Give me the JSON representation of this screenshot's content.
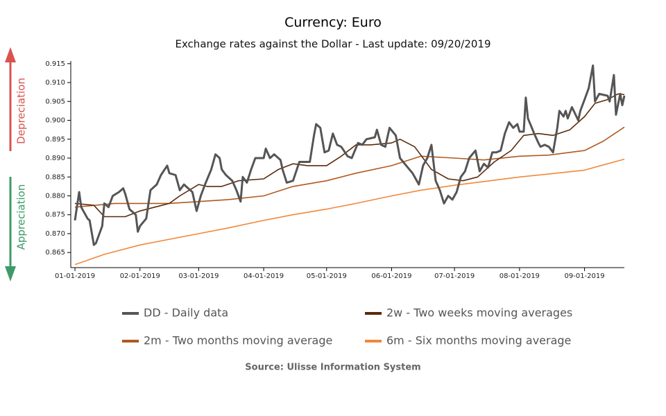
{
  "chart_data": {
    "type": "line",
    "title": "Currency: Euro",
    "subtitle": "Exchange rates against the Dollar - Last update: 09/20/2019",
    "source": "Source: Ulisse Information System",
    "annotations": [
      "Depreciation",
      "Appreciation"
    ],
    "xlim": [
      "2018-12-30",
      "2019-09-20"
    ],
    "ylim": [
      0.861,
      0.9157
    ],
    "xticks": [
      {
        "value": "2019-01-01",
        "label": "01-01-2019"
      },
      {
        "value": "2019-02-01",
        "label": "02-01-2019"
      },
      {
        "value": "2019-03-01",
        "label": "03-01-2019"
      },
      {
        "value": "2019-04-01",
        "label": "04-01-2019"
      },
      {
        "value": "2019-05-01",
        "label": "05-01-2019"
      },
      {
        "value": "2019-06-01",
        "label": "06-01-2019"
      },
      {
        "value": "2019-07-01",
        "label": "07-01-2019"
      },
      {
        "value": "2019-08-01",
        "label": "08-01-2019"
      },
      {
        "value": "2019-09-01",
        "label": "09-01-2019"
      }
    ],
    "yticks": [
      0.865,
      {
        "value": 0.87,
        "label": "0.870"
      },
      0.875,
      {
        "value": 0.88,
        "label": "0.880"
      },
      0.885,
      {
        "value": 0.89,
        "label": "0.890"
      },
      0.895,
      {
        "value": 0.9,
        "label": "0.900"
      },
      0.905,
      {
        "value": 0.91,
        "label": "0.910"
      },
      0.915
    ],
    "series": [
      {
        "name": "DD - Daily data",
        "color": "#555555",
        "width": 3,
        "x": [
          "2019-01-01",
          "2019-01-03",
          "2019-01-04",
          "2019-01-07",
          "2019-01-08",
          "2019-01-10",
          "2019-01-11",
          "2019-01-14",
          "2019-01-15",
          "2019-01-17",
          "2019-01-19",
          "2019-01-22",
          "2019-01-24",
          "2019-01-25",
          "2019-01-27",
          "2019-01-30",
          "2019-01-31",
          "2019-02-01",
          "2019-02-04",
          "2019-02-06",
          "2019-02-09",
          "2019-02-11",
          "2019-02-14",
          "2019-02-15",
          "2019-02-18",
          "2019-02-20",
          "2019-02-22",
          "2019-02-24",
          "2019-02-26",
          "2019-02-28",
          "2019-03-02",
          "2019-03-04",
          "2019-03-07",
          "2019-03-09",
          "2019-03-11",
          "2019-03-12",
          "2019-03-14",
          "2019-03-17",
          "2019-03-19",
          "2019-03-21",
          "2019-03-22",
          "2019-03-24",
          "2019-03-26",
          "2019-03-28",
          "2019-04-01",
          "2019-04-02",
          "2019-04-04",
          "2019-04-06",
          "2019-04-09",
          "2019-04-10",
          "2019-04-12",
          "2019-04-15",
          "2019-04-18",
          "2019-04-23",
          "2019-04-25",
          "2019-04-26",
          "2019-04-28",
          "2019-04-30",
          "2019-05-02",
          "2019-05-04",
          "2019-05-06",
          "2019-05-08",
          "2019-05-11",
          "2019-05-13",
          "2019-05-16",
          "2019-05-18",
          "2019-05-20",
          "2019-05-24",
          "2019-05-25",
          "2019-05-27",
          "2019-05-29",
          "2019-05-31",
          "2019-06-03",
          "2019-06-05",
          "2019-06-08",
          "2019-06-11",
          "2019-06-14",
          "2019-06-16",
          "2019-06-18",
          "2019-06-20",
          "2019-06-22",
          "2019-06-24",
          "2019-06-26",
          "2019-06-28",
          "2019-06-30",
          "2019-07-02",
          "2019-07-04",
          "2019-07-06",
          "2019-07-08",
          "2019-07-11",
          "2019-07-13",
          "2019-07-15",
          "2019-07-17",
          "2019-07-19",
          "2019-07-21",
          "2019-07-23",
          "2019-07-25",
          "2019-07-27",
          "2019-07-29",
          "2019-07-31",
          "2019-08-01",
          "2019-08-03",
          "2019-08-04",
          "2019-08-05",
          "2019-08-08",
          "2019-08-10",
          "2019-08-11",
          "2019-08-13",
          "2019-08-15",
          "2019-08-17",
          "2019-08-19",
          "2019-08-20",
          "2019-08-22",
          "2019-08-23",
          "2019-08-24",
          "2019-08-26",
          "2019-08-29",
          "2019-08-30",
          "2019-09-01",
          "2019-09-03",
          "2019-09-05",
          "2019-09-06",
          "2019-09-08",
          "2019-09-12",
          "2019-09-13",
          "2019-09-15",
          "2019-09-16",
          "2019-09-18",
          "2019-09-19",
          "2019-09-20"
        ],
        "values": [
          0.8735,
          0.881,
          0.877,
          0.874,
          0.8735,
          0.867,
          0.8675,
          0.872,
          0.878,
          0.877,
          0.88,
          0.881,
          0.882,
          0.8805,
          0.8765,
          0.875,
          0.8705,
          0.872,
          0.874,
          0.8815,
          0.883,
          0.8855,
          0.888,
          0.886,
          0.8855,
          0.8815,
          0.883,
          0.882,
          0.881,
          0.876,
          0.88,
          0.883,
          0.887,
          0.891,
          0.89,
          0.887,
          0.8855,
          0.884,
          0.8815,
          0.8785,
          0.885,
          0.8835,
          0.887,
          0.89,
          0.89,
          0.8925,
          0.89,
          0.891,
          0.8895,
          0.887,
          0.8835,
          0.884,
          0.889,
          0.889,
          0.896,
          0.899,
          0.898,
          0.8915,
          0.892,
          0.8965,
          0.8935,
          0.893,
          0.8905,
          0.89,
          0.894,
          0.8935,
          0.895,
          0.8955,
          0.8975,
          0.8935,
          0.893,
          0.898,
          0.896,
          0.89,
          0.888,
          0.886,
          0.883,
          0.888,
          0.89,
          0.8935,
          0.884,
          0.8815,
          0.878,
          0.88,
          0.879,
          0.881,
          0.885,
          0.8865,
          0.89,
          0.892,
          0.8865,
          0.8885,
          0.8875,
          0.8915,
          0.8915,
          0.892,
          0.8965,
          0.8995,
          0.898,
          0.899,
          0.897,
          0.897,
          0.906,
          0.9005,
          0.8965,
          0.894,
          0.893,
          0.8935,
          0.893,
          0.8915,
          0.898,
          0.9025,
          0.901,
          0.9025,
          0.9005,
          0.9035,
          0.9,
          0.9025,
          0.9055,
          0.9085,
          0.9145,
          0.905,
          0.907,
          0.9065,
          0.905,
          0.912,
          0.9015,
          0.907,
          0.904,
          0.9065
        ]
      },
      {
        "name": "2w - Two weeks moving averages",
        "color": "#5a2a0a",
        "width": 1.6,
        "x": [
          "2019-01-01",
          "2019-01-10",
          "2019-01-15",
          "2019-01-25",
          "2019-02-01",
          "2019-02-08",
          "2019-02-15",
          "2019-02-20",
          "2019-03-01",
          "2019-03-05",
          "2019-03-12",
          "2019-03-20",
          "2019-04-01",
          "2019-04-08",
          "2019-04-15",
          "2019-04-22",
          "2019-05-01",
          "2019-05-08",
          "2019-05-15",
          "2019-05-22",
          "2019-06-01",
          "2019-06-05",
          "2019-06-12",
          "2019-06-20",
          "2019-06-28",
          "2019-07-05",
          "2019-07-12",
          "2019-07-20",
          "2019-07-28",
          "2019-08-03",
          "2019-08-10",
          "2019-08-17",
          "2019-08-25",
          "2019-09-01",
          "2019-09-06",
          "2019-09-12",
          "2019-09-17",
          "2019-09-20"
        ],
        "values": [
          0.878,
          0.8775,
          0.8745,
          0.8745,
          0.876,
          0.877,
          0.878,
          0.88,
          0.883,
          0.8825,
          0.8825,
          0.884,
          0.8845,
          0.887,
          0.8885,
          0.888,
          0.888,
          0.8905,
          0.8935,
          0.8935,
          0.894,
          0.895,
          0.893,
          0.887,
          0.8845,
          0.884,
          0.885,
          0.889,
          0.892,
          0.896,
          0.8965,
          0.896,
          0.8975,
          0.901,
          0.9045,
          0.9055,
          0.907,
          0.9068
        ]
      },
      {
        "name": "2m - Two months moving average",
        "color": "#b0591e",
        "width": 1.6,
        "x": [
          "2019-01-01",
          "2019-01-20",
          "2019-02-01",
          "2019-02-15",
          "2019-03-01",
          "2019-03-15",
          "2019-04-01",
          "2019-04-15",
          "2019-05-01",
          "2019-05-15",
          "2019-06-01",
          "2019-06-15",
          "2019-07-01",
          "2019-07-15",
          "2019-08-01",
          "2019-08-15",
          "2019-09-01",
          "2019-09-10",
          "2019-09-20"
        ],
        "values": [
          0.877,
          0.878,
          0.878,
          0.878,
          0.8785,
          0.879,
          0.88,
          0.8825,
          0.884,
          0.886,
          0.888,
          0.8905,
          0.89,
          0.8895,
          0.8905,
          0.8908,
          0.892,
          0.8945,
          0.8982
        ]
      },
      {
        "name": "6m - Six months moving average",
        "color": "#f0883a",
        "width": 1.6,
        "x": [
          "2019-01-01",
          "2019-01-15",
          "2019-02-01",
          "2019-02-15",
          "2019-03-01",
          "2019-03-15",
          "2019-04-01",
          "2019-04-15",
          "2019-05-01",
          "2019-05-15",
          "2019-06-01",
          "2019-06-15",
          "2019-07-01",
          "2019-07-15",
          "2019-08-01",
          "2019-08-15",
          "2019-09-01",
          "2019-09-10",
          "2019-09-20"
        ],
        "values": [
          0.8618,
          0.8645,
          0.867,
          0.8685,
          0.87,
          0.8715,
          0.8735,
          0.875,
          0.8765,
          0.878,
          0.88,
          0.8815,
          0.8828,
          0.8838,
          0.885,
          0.8858,
          0.8868,
          0.8882,
          0.8897
        ]
      }
    ]
  }
}
